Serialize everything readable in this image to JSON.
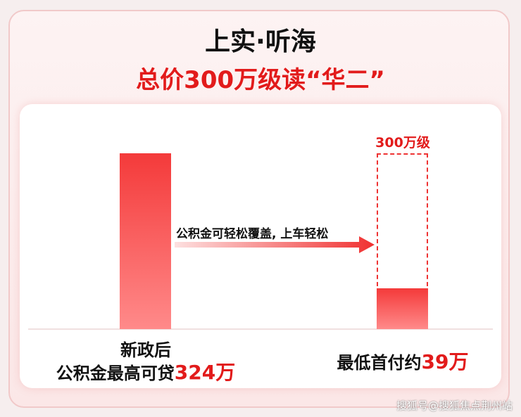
{
  "header": {
    "title": "上实·听海",
    "subtitle": "总价300万级读“华二”"
  },
  "left": {
    "line1": "新政后",
    "line2_text": "公积金最高可贷",
    "line2_amount": "324万"
  },
  "arrow_label": "公积金可轻松覆盖, 上车轻松",
  "right": {
    "box_label": "300万级",
    "text": "最低首付约",
    "amount": "39万"
  },
  "watermark": "搜狐号@搜狐焦点荆州站"
}
